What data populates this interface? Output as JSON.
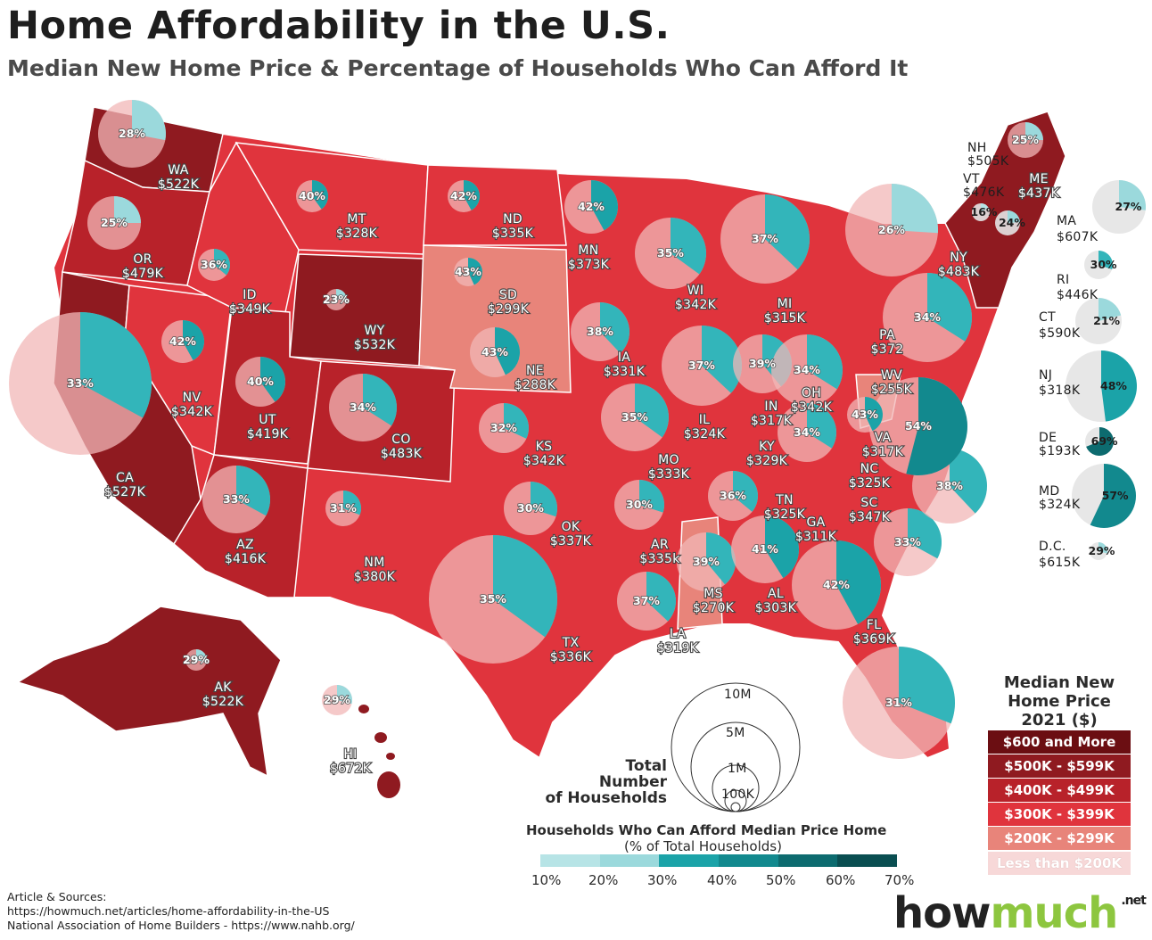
{
  "title": "Home Affordability in the U.S.",
  "subtitle": "Median New Home Price & Percentage of Households Who Can Afford It",
  "colors": {
    "price_600_plus": "#6b0e12",
    "price_500_599": "#8f1a20",
    "price_400_499": "#b8222a",
    "price_300_399": "#e0343d",
    "price_200_299": "#e8847a",
    "price_under_200": "#f7d8d8",
    "pie_afford": "#14a3a8",
    "pie_rest": "#f2b7b7"
  },
  "states": [
    {
      "abbr": "WA",
      "price": "$522K",
      "pct": "28%"
    },
    {
      "abbr": "OR",
      "price": "$479K",
      "pct": "25%"
    },
    {
      "abbr": "CA",
      "price": "$527K",
      "pct": "33%"
    },
    {
      "abbr": "NV",
      "price": "$342K",
      "pct": "42%"
    },
    {
      "abbr": "ID",
      "price": "$349K",
      "pct": "36%"
    },
    {
      "abbr": "MT",
      "price": "$328K",
      "pct": "40%"
    },
    {
      "abbr": "WY",
      "price": "$532K",
      "pct": "23%"
    },
    {
      "abbr": "UT",
      "price": "$419K",
      "pct": "40%"
    },
    {
      "abbr": "AZ",
      "price": "$416K",
      "pct": "33%"
    },
    {
      "abbr": "CO",
      "price": "$483K",
      "pct": "34%"
    },
    {
      "abbr": "NM",
      "price": "$380K",
      "pct": "31%"
    },
    {
      "abbr": "ND",
      "price": "$335K",
      "pct": "42%"
    },
    {
      "abbr": "SD",
      "price": "$299K",
      "pct": "43%"
    },
    {
      "abbr": "NE",
      "price": "$288K",
      "pct": "43%"
    },
    {
      "abbr": "KS",
      "price": "$342K",
      "pct": "32%"
    },
    {
      "abbr": "OK",
      "price": "$337K",
      "pct": "30%"
    },
    {
      "abbr": "TX",
      "price": "$336K",
      "pct": "35%"
    },
    {
      "abbr": "MN",
      "price": "$373K",
      "pct": "42%"
    },
    {
      "abbr": "IA",
      "price": "$331K",
      "pct": "38%"
    },
    {
      "abbr": "MO",
      "price": "$333K",
      "pct": "35%"
    },
    {
      "abbr": "AR",
      "price": "$335k",
      "pct": "30%"
    },
    {
      "abbr": "LA",
      "price": "$319K",
      "pct": "37%"
    },
    {
      "abbr": "WI",
      "price": "$342K",
      "pct": "35%"
    },
    {
      "abbr": "IL",
      "price": "$324K",
      "pct": "37%"
    },
    {
      "abbr": "MI",
      "price": "$315K",
      "pct": "37%"
    },
    {
      "abbr": "IN",
      "price": "$317K",
      "pct": "39%"
    },
    {
      "abbr": "OH",
      "price": "$342K",
      "pct": "34%"
    },
    {
      "abbr": "KY",
      "price": "$329K",
      "pct": "34%"
    },
    {
      "abbr": "TN",
      "price": "$325K",
      "pct": "36%"
    },
    {
      "abbr": "MS",
      "price": "$270K",
      "pct": "39%"
    },
    {
      "abbr": "AL",
      "price": "$303K",
      "pct": "41%"
    },
    {
      "abbr": "GA",
      "price": "$311K",
      "pct": "42%"
    },
    {
      "abbr": "FL",
      "price": "$369K",
      "pct": "31%"
    },
    {
      "abbr": "SC",
      "price": "$347K",
      "pct": "33%"
    },
    {
      "abbr": "NC",
      "price": "$325K",
      "pct": "38%"
    },
    {
      "abbr": "VA",
      "price": "$317K",
      "pct": "54%"
    },
    {
      "abbr": "WV",
      "price": "$255K",
      "pct": "43%"
    },
    {
      "abbr": "PA",
      "price": "$372",
      "pct": "34%"
    },
    {
      "abbr": "NY",
      "price": "$483K",
      "pct": "26%"
    },
    {
      "abbr": "ME",
      "price": "$437K",
      "pct": "25%"
    },
    {
      "abbr": "NH",
      "price": "$505K",
      "pct": "24%"
    },
    {
      "abbr": "VT",
      "price": "$476K",
      "pct": "16%"
    },
    {
      "abbr": "MA",
      "price": "$607K",
      "pct": "27%"
    },
    {
      "abbr": "RI",
      "price": "$446K",
      "pct": "30%"
    },
    {
      "abbr": "CT",
      "price": "$590K",
      "pct": "21%"
    },
    {
      "abbr": "NJ",
      "price": "$318K",
      "pct": "48%"
    },
    {
      "abbr": "DE",
      "price": "$193K",
      "pct": "69%"
    },
    {
      "abbr": "MD",
      "price": "$324K",
      "pct": "57%"
    },
    {
      "abbr": "D.C.",
      "price": "$615K",
      "pct": "29%"
    },
    {
      "abbr": "AK",
      "price": "$522K",
      "pct": "29%"
    },
    {
      "abbr": "HI",
      "price": "$672K",
      "pct": "29%"
    }
  ],
  "legend": {
    "title_line1": "Median New",
    "title_line2": "Home Price",
    "title_line3": "2021 ($)",
    "items": [
      "$600 and More",
      "$500K - $599K",
      "$400K - $499K",
      "$300K - $399K",
      "$200K - $299K",
      "Less than $200K"
    ]
  },
  "households_scale": {
    "title_line1": "Total",
    "title_line2": "Number",
    "title_line3": "of Households",
    "labels": [
      "10M",
      "5M",
      "1M",
      "100K"
    ]
  },
  "afford_scale": {
    "title": "Households Who Can Afford Median Price Home",
    "subtitle": "(% of Total Households)",
    "ticks": [
      "10%",
      "20%",
      "30%",
      "40%",
      "50%",
      "60%",
      "70%"
    ],
    "colors": [
      "#b7e4e6",
      "#9bd9dc",
      "#33b5ba",
      "#1ba3a8",
      "#12898e",
      "#0d6b6f",
      "#0a4e51"
    ]
  },
  "sources": {
    "heading": "Article & Sources:",
    "line1": "https://howmuch.net/articles/home-affordability-in-the-US",
    "line2": "National Association of Home Builders - https://www.nahb.org/"
  },
  "brand": {
    "part1": "how",
    "part2": "much",
    "suffix": ".net"
  }
}
